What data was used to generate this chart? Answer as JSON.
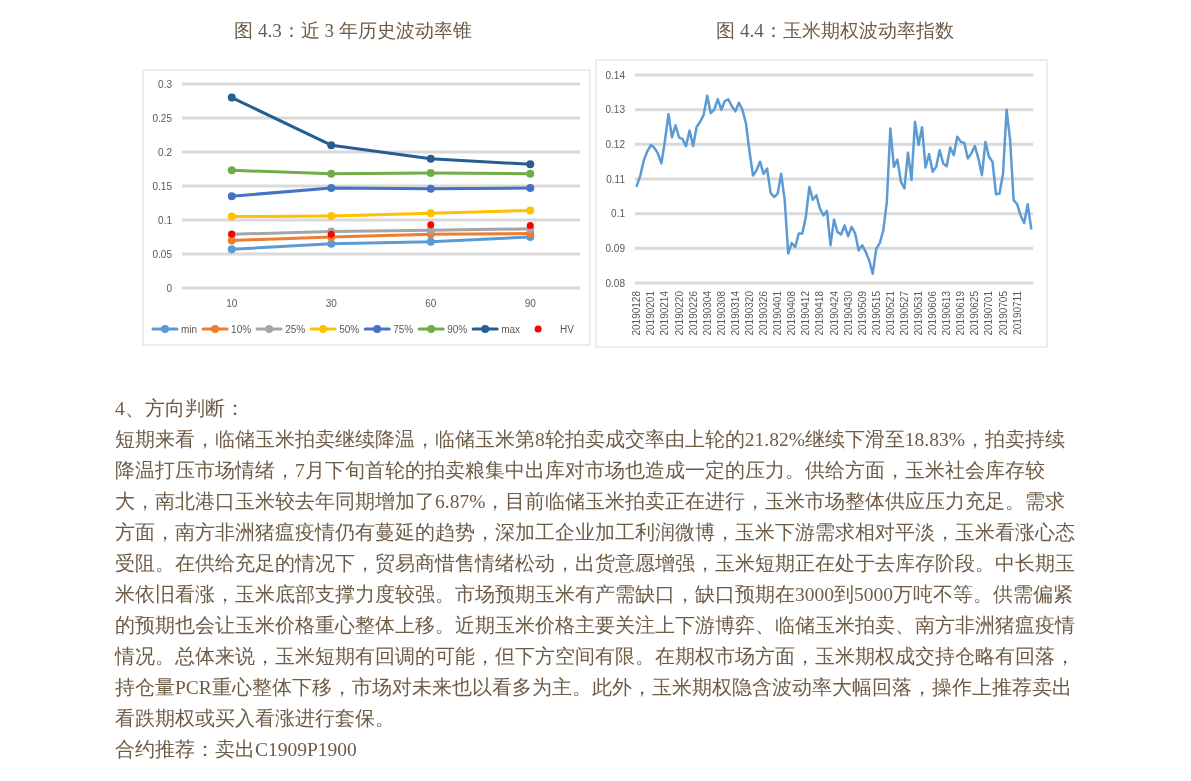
{
  "chart_data": [
    {
      "type": "line",
      "title": "图 4.3：近 3 年历史波动率锥",
      "categories": [
        "10",
        "30",
        "60",
        "90"
      ],
      "ylim": [
        0,
        0.3
      ],
      "yticks": [
        0,
        0.05,
        0.1,
        0.15,
        0.2,
        0.25,
        0.3
      ],
      "grid": "y",
      "legend": "bottom",
      "marker": "circle",
      "series": [
        {
          "name": "min",
          "color": "#5b9bd5",
          "values": [
            0.057,
            0.065,
            0.068,
            0.075
          ]
        },
        {
          "name": "10%",
          "color": "#ed7d31",
          "values": [
            0.07,
            0.075,
            0.079,
            0.08
          ]
        },
        {
          "name": "25%",
          "color": "#a5a5a5",
          "values": [
            0.079,
            0.083,
            0.085,
            0.087
          ]
        },
        {
          "name": "50%",
          "color": "#ffc000",
          "values": [
            0.105,
            0.106,
            0.11,
            0.114
          ]
        },
        {
          "name": "75%",
          "color": "#4472c4",
          "values": [
            0.135,
            0.147,
            0.146,
            0.147
          ]
        },
        {
          "name": "90%",
          "color": "#70ad47",
          "values": [
            0.173,
            0.168,
            0.169,
            0.168
          ]
        },
        {
          "name": "max",
          "color": "#255e91",
          "values": [
            0.28,
            0.21,
            0.19,
            0.182
          ]
        },
        {
          "name": "HV",
          "type": "scatter",
          "color": "#ff0000",
          "values": [
            0.079,
            0.079,
            0.093,
            0.092
          ]
        }
      ]
    },
    {
      "type": "line",
      "title": "图 4.4：玉米期权波动率指数",
      "ylim": [
        0.08,
        0.14
      ],
      "yticks": [
        0.08,
        0.09,
        0.1,
        0.11,
        0.12,
        0.13,
        0.14
      ],
      "grid": "y",
      "color": "#5b9bd5",
      "categories": [
        "20190128",
        null,
        null,
        null,
        "20190201",
        null,
        null,
        null,
        "20190214",
        null,
        null,
        null,
        "20190220",
        null,
        null,
        null,
        "20190226",
        null,
        null,
        null,
        "20190304",
        null,
        null,
        null,
        "20190308",
        null,
        null,
        null,
        "20190314",
        null,
        null,
        null,
        "20190320",
        null,
        null,
        null,
        "20190326",
        null,
        null,
        null,
        "20190401",
        null,
        null,
        null,
        "20190408",
        null,
        null,
        null,
        "20190412",
        null,
        null,
        null,
        "20190418",
        null,
        null,
        null,
        "20190424",
        null,
        null,
        null,
        "20190430",
        null,
        null,
        null,
        "20190509",
        null,
        null,
        null,
        "20190515",
        null,
        null,
        null,
        "20190521",
        null,
        null,
        null,
        "20190527",
        null,
        null,
        null,
        "20190531",
        null,
        null,
        null,
        "20190606",
        null,
        null,
        null,
        "20190613",
        null,
        null,
        null,
        "20190619",
        null,
        null,
        null,
        "20190625",
        null,
        null,
        null,
        "20190701",
        null,
        null,
        null,
        "20190705",
        null,
        null,
        null,
        "20190711",
        null,
        null,
        null,
        null
      ],
      "values": [
        0.108,
        0.111,
        0.1154,
        0.118,
        0.1198,
        0.119,
        0.1174,
        0.1145,
        0.121,
        0.1287,
        0.122,
        0.1255,
        0.122,
        0.1215,
        0.1195,
        0.124,
        0.1195,
        0.125,
        0.1265,
        0.1285,
        0.134,
        0.129,
        0.13,
        0.133,
        0.13,
        0.1325,
        0.133,
        0.131,
        0.1295,
        0.132,
        0.13,
        0.126,
        0.118,
        0.111,
        0.1125,
        0.115,
        0.1115,
        0.113,
        0.106,
        0.1048,
        0.1058,
        0.1115,
        0.104,
        0.0885,
        0.0915,
        0.0904,
        0.0943,
        0.0943,
        0.099,
        0.1077,
        0.104,
        0.1053,
        0.1015,
        0.0995,
        0.1008,
        0.0909,
        0.0983,
        0.0947,
        0.094,
        0.0966,
        0.0935,
        0.0962,
        0.0943,
        0.0894,
        0.0909,
        0.089,
        0.0865,
        0.0827,
        0.0899,
        0.0915,
        0.0952,
        0.1034,
        0.1246,
        0.1135,
        0.1156,
        0.1092,
        0.1073,
        0.1176,
        0.1097,
        0.1265,
        0.1198,
        0.1249,
        0.1133,
        0.1172,
        0.1121,
        0.1135,
        0.1183,
        0.1145,
        0.1137,
        0.1191,
        0.1169,
        0.1222,
        0.1207,
        0.1204,
        0.1159,
        0.1174,
        0.1195,
        0.1159,
        0.1111,
        0.1207,
        0.1164,
        0.115,
        0.1056,
        0.1058,
        0.1116,
        0.13,
        0.1212,
        0.1039,
        0.1027,
        0.0995,
        0.0973,
        0.1027,
        0.0957
      ]
    },
    {
      "type": "other",
      "annotations": [
        "4、方向判断：",
        "短期来看，临储玉米拍卖继续降温，临储玉米第8轮拍卖成交率由上轮的21.82%继续下滑至18.83%，拍卖持续降温打压市场情绪，7月下旬首轮的拍卖粮集中出库对市场也造成一定的压力。供给方面，玉米社会库存较大，南北港口玉米较去年同期增加了6.87%，目前临储玉米拍卖正在进行，玉米市场整体供应压力充足。需求方面，南方非洲猪瘟疫情仍有蔓延的趋势，深加工企业加工利润微博，玉米下游需求相对平淡，玉米看涨心态受阻。在供给充足的情况下，贸易商惜售情绪松动，出货意愿增强，玉米短期正在处于去库存阶段。中长期玉米依旧看涨，玉米底部支撑力度较强。市场预期玉米有产需缺口，缺口预期在3000到5000万吨不等。供需偏紧的预期也会让玉米价格重心整体上移。近期玉米价格主要关注上下游博弈、临储玉米拍卖、南方非洲猪瘟疫情情况。总体来说，玉米短期有回调的可能，但下方空间有限。在期权市场方面，玉米期权成交持仓略有回落，持仓量PCR重心整体下移，市场对未来也以看多为主。此外，玉米期权隐含波动率大幅回落，操作上推荐卖出看跌期权或买入看涨进行套保。",
        "合约推荐：卖出C1909P1900"
      ]
    }
  ]
}
